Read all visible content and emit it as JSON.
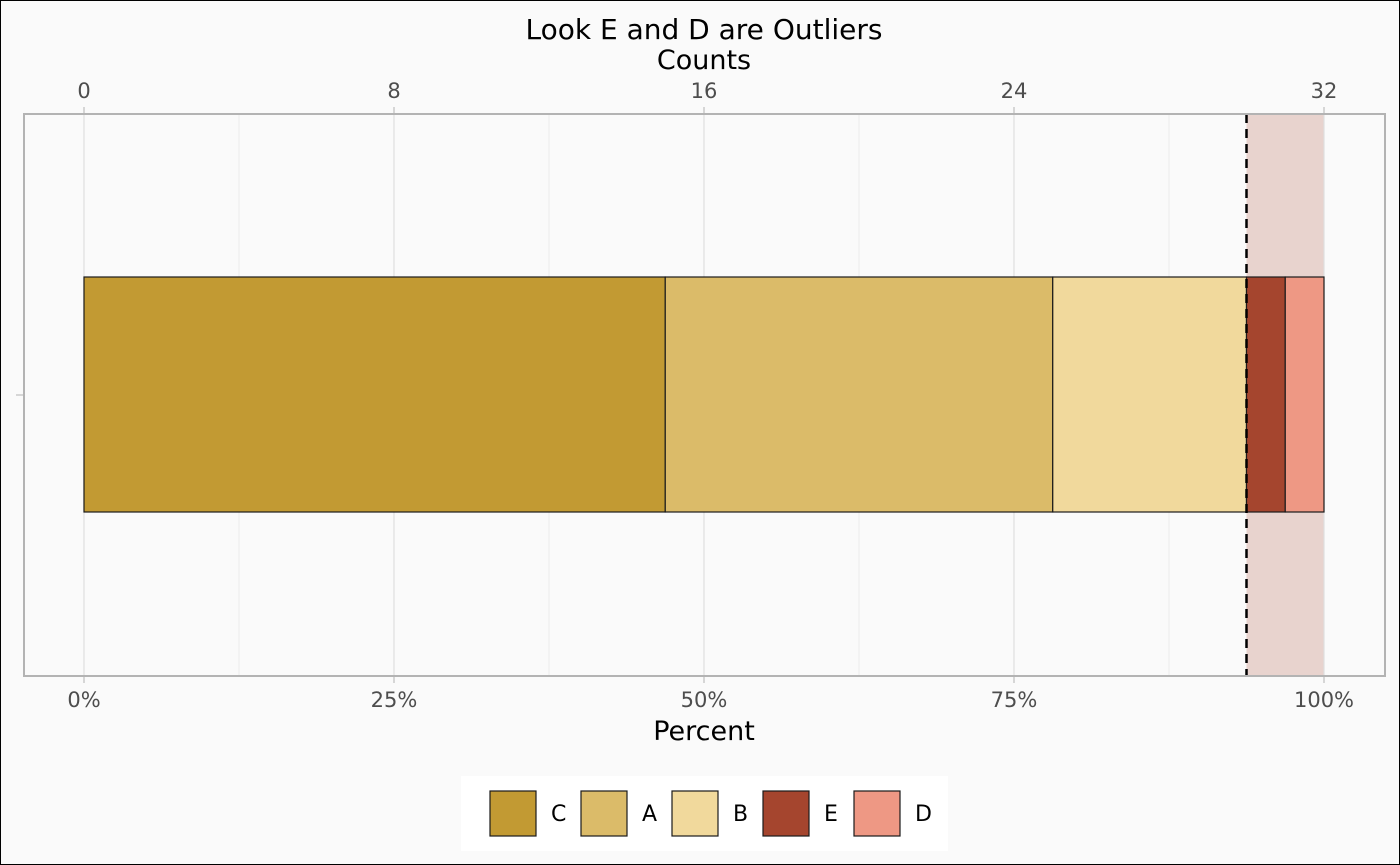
{
  "chart_data": {
    "type": "bar",
    "orientation": "horizontal",
    "stacked": true,
    "title": "Look E and D are Outliers",
    "top_axis_label": "Counts",
    "xlabel": "Percent",
    "ylabel": "",
    "categories": [
      ""
    ],
    "series": [
      {
        "name": "C",
        "values": [
          15
        ],
        "color": "#C29A33"
      },
      {
        "name": "A",
        "values": [
          10
        ],
        "color": "#DBBB69"
      },
      {
        "name": "B",
        "values": [
          5
        ],
        "color": "#F1D99C"
      },
      {
        "name": "E",
        "values": [
          1
        ],
        "color": "#A5452E"
      },
      {
        "name": "D",
        "values": [
          1
        ],
        "color": "#EE9884"
      }
    ],
    "total_count": 32,
    "bottom_axis": {
      "range": [
        0,
        100
      ],
      "ticks": [
        0,
        25,
        50,
        75,
        100
      ],
      "tick_labels": [
        "0%",
        "25%",
        "50%",
        "75%",
        "100%"
      ]
    },
    "top_axis": {
      "range": [
        0,
        32
      ],
      "ticks": [
        0,
        8,
        16,
        24,
        32
      ],
      "tick_labels": [
        "0",
        "8",
        "16",
        "24",
        "32"
      ]
    },
    "outlier_threshold_count": 30,
    "outlier_region_color": "#E8D3CE",
    "threshold_line": "dashed",
    "grid": true,
    "legend_position": "bottom"
  }
}
